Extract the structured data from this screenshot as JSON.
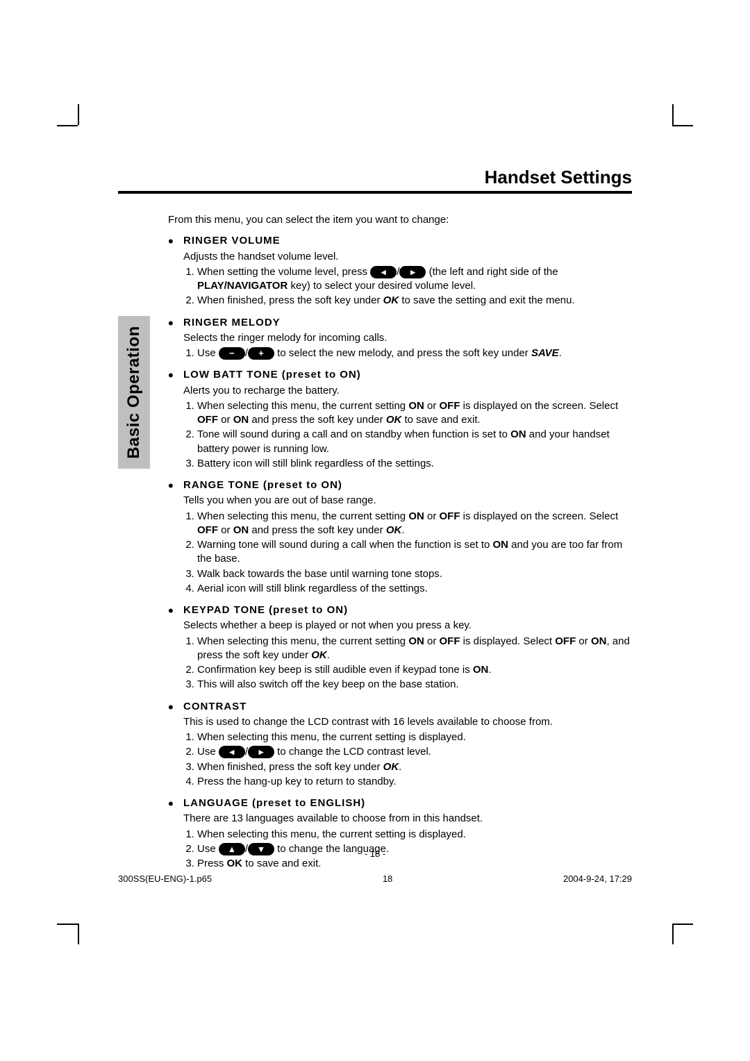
{
  "header": {
    "title": "Handset Settings"
  },
  "sidetab": {
    "label": "Basic Operation"
  },
  "intro": "From this menu, you can select the item you want to change:",
  "icons": {
    "vol_down": "◂",
    "vol_up": "▸",
    "minus": "−",
    "plus": "+",
    "up": "▴",
    "down": "▾"
  },
  "items": [
    {
      "title": "RINGER VOLUME",
      "desc": "Adjusts the handset volume level.",
      "steps": [
        "When setting the volume level, press <PILL vol_down>/<PILL vol_up> (the left and right side of the <b>PLAY/NAVIGATOR</b> key) to select your desired volume level.",
        "When finished, press the soft key under <ok>OK</ok> to save the setting and exit the menu."
      ]
    },
    {
      "title": "RINGER MELODY",
      "desc": "Selects the ringer melody for incoming calls.",
      "steps": [
        "Use <PILL minus>/<PILL plus> to select the new melody, and press the soft key under <save>SAVE</save>."
      ]
    },
    {
      "title": "LOW BATT TONE (preset to ON)",
      "desc": "Alerts you to recharge the battery.",
      "steps": [
        "When selecting this menu, the current setting <b>ON</b> or <b>OFF</b> is displayed on the screen. Select <b>OFF</b> or <b>ON</b> and press the soft key under <ok>OK</ok> to save and exit.",
        "Tone will sound during a call and on standby when function is set to <b>ON</b> and your handset battery power is running low.",
        "Battery icon will still blink regardless of the settings."
      ]
    },
    {
      "title": "RANGE TONE (preset to ON)",
      "desc": "Tells you when you are out of base range.",
      "steps": [
        "When selecting this menu, the current setting <b>ON</b> or <b>OFF</b> is displayed on the screen. Select <b>OFF</b> or <b>ON</b> and press the soft key under <ok>OK</ok>.",
        "Warning tone will sound during a call when the function is set to <b>ON</b> and you are too far from the base.",
        "Walk back towards the base until warning tone stops.",
        "Aerial icon will still blink regardless of the settings."
      ]
    },
    {
      "title": "KEYPAD TONE (preset to ON)",
      "desc": "Selects whether a beep is played or not when you press a key.",
      "steps": [
        "When selecting this menu, the current setting <b>ON</b> or <b>OFF</b> is displayed. Select <b>OFF</b> or <b>ON</b>, and press the soft key under <ok>OK</ok>.",
        "Confirmation key beep is still audible even if keypad tone is <b>ON</b>.",
        "This will also switch off the key beep on the base station."
      ]
    },
    {
      "title": "CONTRAST",
      "desc": "This is used to change the LCD contrast with 16 levels available to choose from.",
      "steps": [
        "When selecting this menu, the current setting is displayed.",
        "Use <PILL vol_down>/<PILL vol_up> to change the LCD contrast level.",
        "When finished, press the soft key under <ok>OK</ok>.",
        "Press the hang-up key to return to standby."
      ]
    },
    {
      "title": "LANGUAGE (preset to ENGLISH)",
      "desc": "There are 13 languages available to choose from in this handset.",
      "steps": [
        "When selecting this menu, the current setting is displayed.",
        "Use <PILL up>/<PILL down> to change the language.",
        "Press <b>OK</b> to save and exit."
      ]
    }
  ],
  "footer": {
    "pagenum": "- 18 -",
    "left": "300SS(EU-ENG)-1.p65",
    "mid": "18",
    "right": "2004-9-24, 17:29"
  }
}
